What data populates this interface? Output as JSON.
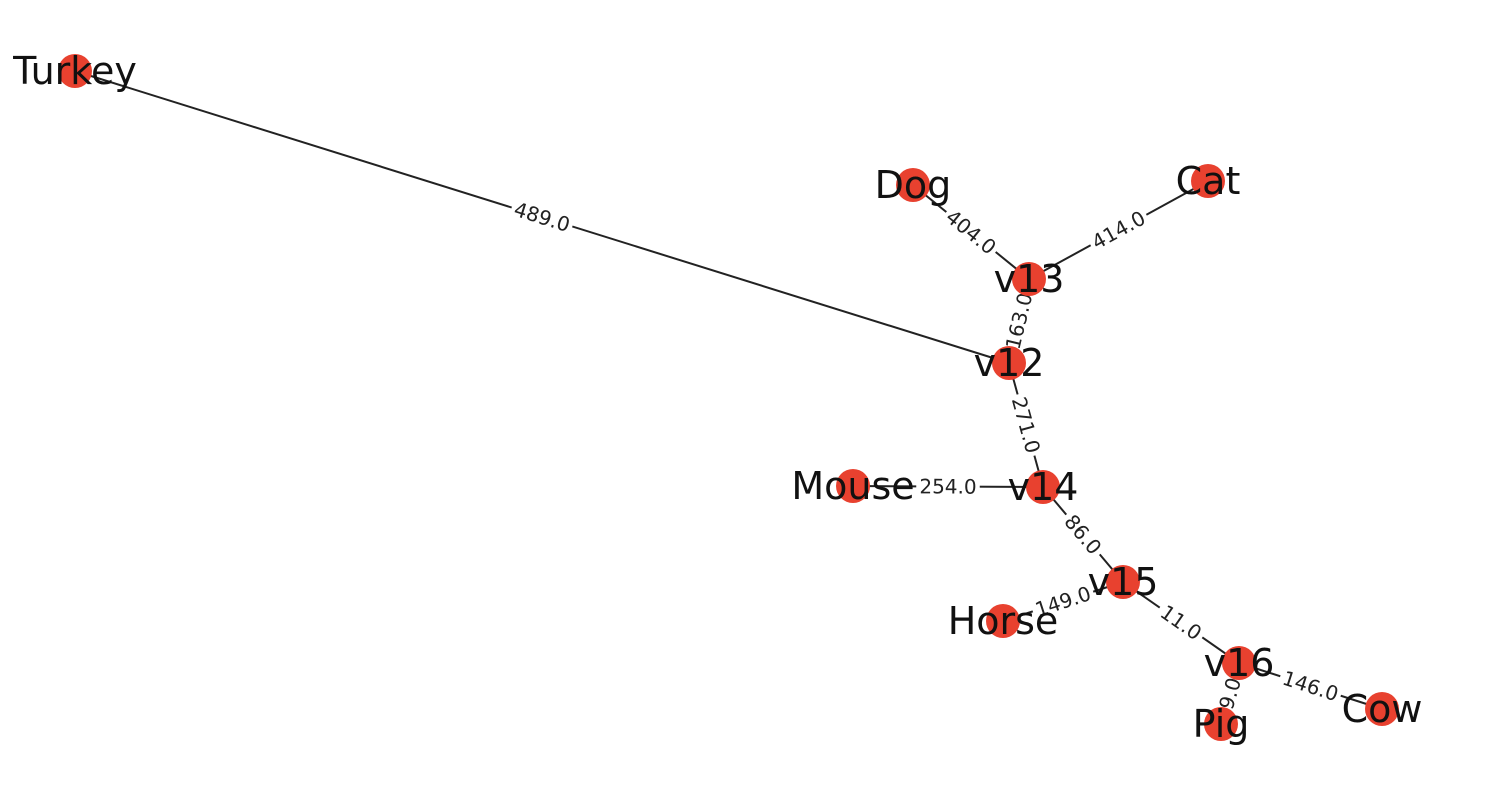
{
  "diagram": {
    "node_color": "#e8412f",
    "edge_color": "#222222",
    "nodes": [
      {
        "id": "Turkey",
        "label": "Turkey"
      },
      {
        "id": "Dog",
        "label": "Dog"
      },
      {
        "id": "Cat",
        "label": "Cat"
      },
      {
        "id": "v13",
        "label": "v13"
      },
      {
        "id": "v12",
        "label": "v12"
      },
      {
        "id": "Mouse",
        "label": "Mouse"
      },
      {
        "id": "v14",
        "label": "v14"
      },
      {
        "id": "v15",
        "label": "v15"
      },
      {
        "id": "Horse",
        "label": "Horse"
      },
      {
        "id": "v16",
        "label": "v16"
      },
      {
        "id": "Pig",
        "label": "Pig"
      },
      {
        "id": "Cow",
        "label": "Cow"
      }
    ],
    "edges": [
      {
        "source": "Turkey",
        "target": "v12",
        "label": "489.0"
      },
      {
        "source": "Dog",
        "target": "v13",
        "label": "404.0"
      },
      {
        "source": "Cat",
        "target": "v13",
        "label": "414.0"
      },
      {
        "source": "v13",
        "target": "v12",
        "label": "163.0"
      },
      {
        "source": "v12",
        "target": "v14",
        "label": "271.0"
      },
      {
        "source": "Mouse",
        "target": "v14",
        "label": "254.0"
      },
      {
        "source": "v14",
        "target": "v15",
        "label": "86.0"
      },
      {
        "source": "Horse",
        "target": "v15",
        "label": "149.0"
      },
      {
        "source": "v15",
        "target": "v16",
        "label": "11.0"
      },
      {
        "source": "v16",
        "target": "Pig",
        "label": "9.0"
      },
      {
        "source": "v16",
        "target": "Cow",
        "label": "146.0"
      }
    ]
  }
}
